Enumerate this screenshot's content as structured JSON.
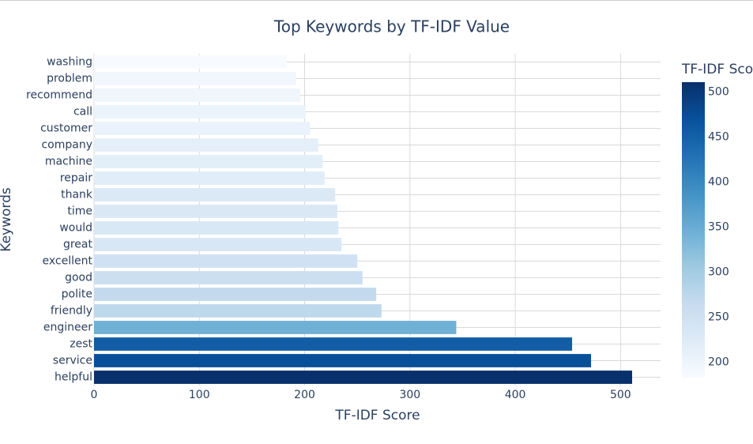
{
  "chart_data": {
    "type": "bar",
    "orientation": "h",
    "title": "Top Keywords by TF-IDF Value",
    "x_label": "TF-IDF Score",
    "y_label": "Keywords",
    "colorbar_title": "TF-IDF Score",
    "categories": [
      "helpful",
      "service",
      "zest",
      "engineer",
      "friendly",
      "polite",
      "good",
      "excellent",
      "great",
      "would",
      "time",
      "thank",
      "repair",
      "machine",
      "company",
      "customer",
      "call",
      "recommend",
      "problem",
      "washing"
    ],
    "values": [
      511,
      472,
      454,
      344,
      273,
      268,
      255,
      250,
      235,
      232,
      231,
      229,
      219,
      217,
      213,
      205,
      201,
      196,
      192,
      183
    ],
    "xlim": [
      0,
      538
    ],
    "xticks": [
      0,
      100,
      200,
      300,
      400,
      500
    ],
    "colorbar_ticks": [
      200,
      250,
      300,
      350,
      400,
      450,
      500
    ],
    "colorscale": [
      [
        0,
        "rgb(247,251,255)"
      ],
      [
        0.125,
        "rgb(222,235,247)"
      ],
      [
        0.25,
        "rgb(198,219,239)"
      ],
      [
        0.375,
        "rgb(158,202,225)"
      ],
      [
        0.5,
        "rgb(107,174,214)"
      ],
      [
        0.625,
        "rgb(66,146,198)"
      ],
      [
        0.75,
        "rgb(33,113,181)"
      ],
      [
        0.875,
        "rgb(8,81,156)"
      ],
      [
        1,
        "rgb(8,48,107)"
      ]
    ],
    "grid": true
  }
}
